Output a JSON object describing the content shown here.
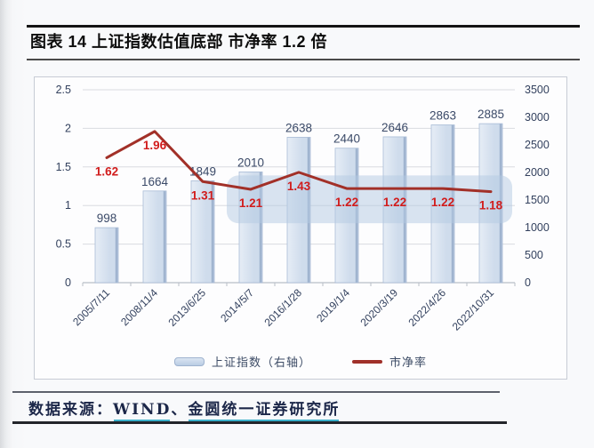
{
  "chart_data": {
    "type": "bar+line",
    "title": "图表 14 上证指数估值底部 市净率 1.2 倍",
    "categories": [
      "2005/7/11",
      "2008/11/4",
      "2013/6/25",
      "2014/5/7",
      "2016/1/28",
      "2019/1/4",
      "2020/3/19",
      "2022/4/26",
      "2022/10/31"
    ],
    "series": [
      {
        "name": "上证指数（右轴）",
        "type": "bar",
        "axis": "right",
        "values": [
          998,
          1664,
          1849,
          2010,
          2638,
          2440,
          2646,
          2863,
          2885
        ]
      },
      {
        "name": "市净率",
        "type": "line",
        "axis": "left",
        "values": [
          1.62,
          1.96,
          1.31,
          1.21,
          1.43,
          1.22,
          1.22,
          1.22,
          1.18
        ]
      }
    ],
    "left_axis": {
      "min": 0,
      "max": 2.5,
      "ticks": [
        {
          "v": 0,
          "label": "0"
        },
        {
          "v": 0.5,
          "label": "0.5"
        },
        {
          "v": 1,
          "label": "1"
        },
        {
          "v": 1.5,
          "label": "1.5"
        },
        {
          "v": 2,
          "label": "2"
        },
        {
          "v": 2.5,
          "label": "2.5"
        }
      ]
    },
    "right_axis": {
      "min": 0,
      "max": 3500,
      "ticks": [
        {
          "v": 0,
          "label": "0"
        },
        {
          "v": 500,
          "label": "500"
        },
        {
          "v": 1000,
          "label": "1000"
        },
        {
          "v": 1500,
          "label": "1500"
        },
        {
          "v": 2000,
          "label": "2000"
        },
        {
          "v": 2500,
          "label": "2500"
        },
        {
          "v": 3000,
          "label": "3000"
        },
        {
          "v": 3500,
          "label": "3500"
        }
      ]
    },
    "grid": true,
    "legend_position": "bottom",
    "highlight_band": {
      "from_category": "2014/5/7",
      "to_category": "2022/10/31",
      "axis": "left",
      "y_top": 1.39,
      "y_bottom": 0.77
    },
    "colors": {
      "bar_fill_light": "#e6edf6",
      "bar_fill": "#cfdcec",
      "bar_shade": "#97acc9",
      "bar_edge": "#a9bcd6",
      "bar_label": "#3b4a68",
      "line": "#a23028",
      "line_label": "#d11c1c",
      "grid": "#d9dbe0",
      "axis_line": "#b9bec7",
      "axis_label": "#33415e",
      "highlight": "#b3c9e2"
    }
  },
  "footer": {
    "parts": [
      {
        "text": "数据来源：",
        "underline": false
      },
      {
        "text": "WIND",
        "underline": true
      },
      {
        "text": "、",
        "underline": false
      },
      {
        "text": "金圆统一证券研究所",
        "underline": true
      }
    ]
  }
}
